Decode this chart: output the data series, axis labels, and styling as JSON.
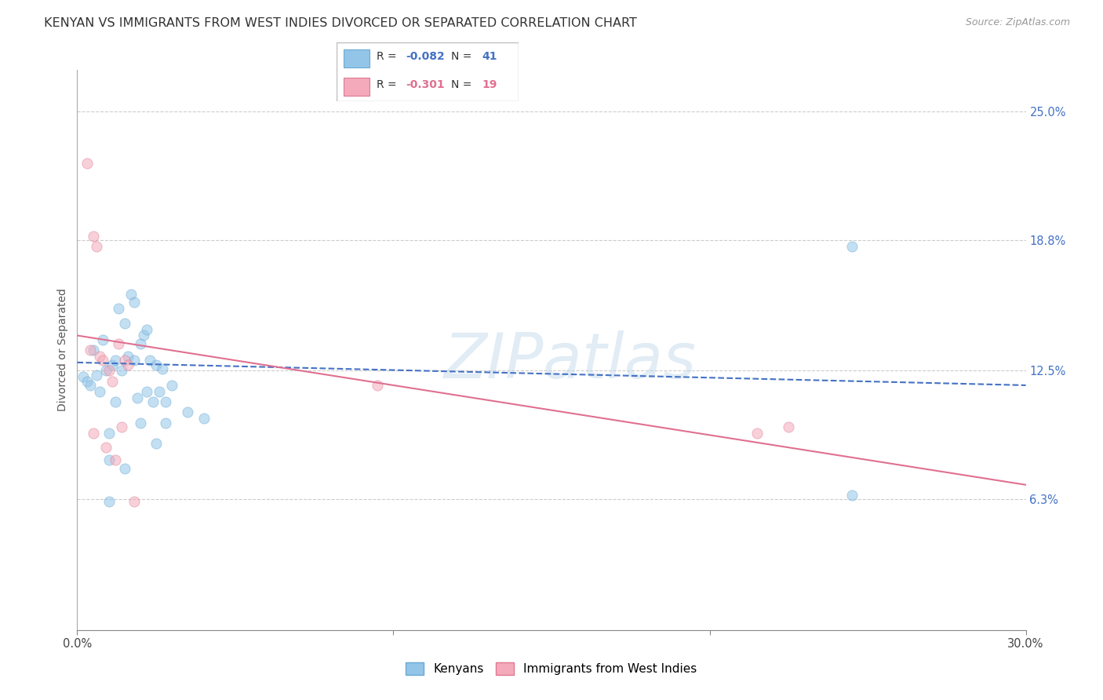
{
  "title": "KENYAN VS IMMIGRANTS FROM WEST INDIES DIVORCED OR SEPARATED CORRELATION CHART",
  "source": "Source: ZipAtlas.com",
  "ylabel": "Divorced or Separated",
  "ytick_values": [
    6.3,
    12.5,
    18.8,
    25.0
  ],
  "ytick_labels": [
    "6.3%",
    "12.5%",
    "18.8%",
    "25.0%"
  ],
  "xlim": [
    0.0,
    30.0
  ],
  "ylim": [
    0.0,
    27.0
  ],
  "kenyan_scatter_x": [
    0.2,
    0.3,
    0.4,
    0.5,
    0.6,
    0.7,
    0.8,
    0.9,
    1.0,
    1.1,
    1.2,
    1.3,
    1.4,
    1.5,
    1.6,
    1.7,
    1.8,
    1.9,
    2.0,
    2.1,
    2.2,
    2.3,
    2.4,
    2.5,
    2.6,
    2.7,
    2.8,
    3.0,
    3.5,
    4.0,
    1.0,
    1.5,
    2.0,
    2.5,
    1.2,
    1.8,
    2.2,
    2.8,
    24.5,
    24.5,
    1.0
  ],
  "kenyan_scatter_y": [
    12.2,
    12.0,
    11.8,
    13.5,
    12.3,
    11.5,
    14.0,
    12.5,
    9.5,
    12.8,
    13.0,
    15.5,
    12.5,
    14.8,
    13.2,
    16.2,
    15.8,
    11.2,
    13.8,
    14.2,
    14.5,
    13.0,
    11.0,
    12.8,
    11.5,
    12.6,
    11.0,
    11.8,
    10.5,
    10.2,
    8.2,
    7.8,
    10.0,
    9.0,
    11.0,
    13.0,
    11.5,
    10.0,
    18.5,
    6.5,
    6.2
  ],
  "westindies_scatter_x": [
    0.3,
    0.5,
    0.6,
    0.7,
    0.8,
    0.9,
    1.0,
    1.1,
    1.2,
    1.3,
    1.4,
    1.5,
    1.6,
    0.4,
    0.5,
    9.5,
    21.5,
    22.5,
    1.8
  ],
  "westindies_scatter_y": [
    22.5,
    19.0,
    18.5,
    13.2,
    13.0,
    8.8,
    12.5,
    12.0,
    8.2,
    13.8,
    9.8,
    13.0,
    12.8,
    13.5,
    9.5,
    11.8,
    9.5,
    9.8,
    6.2
  ],
  "kenyan_line_x": [
    0.0,
    30.0
  ],
  "kenyan_line_y": [
    12.9,
    11.8
  ],
  "westindies_line_x": [
    0.0,
    30.0
  ],
  "westindies_line_y": [
    14.2,
    7.0
  ],
  "watermark_text": "ZIPatlas",
  "kenyan_color": "#93C5E8",
  "kenyan_edge": "#6AAAD4",
  "westindies_color": "#F4AABB",
  "westindies_edge": "#E07890",
  "kenyan_line_color": "#4472C4",
  "westindies_line_color": "#E07090",
  "background_color": "#ffffff",
  "grid_color": "#CCCCCC",
  "title_fontsize": 11.5,
  "label_fontsize": 10,
  "tick_fontsize": 10.5,
  "scatter_size": 90,
  "scatter_alpha": 0.55,
  "legend_r1": "R = -0.082   N = 41",
  "legend_r2": "R =  -0.301   N = 19",
  "r1_val": "-0.082",
  "r1_n": "41",
  "r2_val": "-0.301",
  "r2_n": "19",
  "bottom_legend_kenyans": "Kenyans",
  "bottom_legend_wi": "Immigrants from West Indies"
}
